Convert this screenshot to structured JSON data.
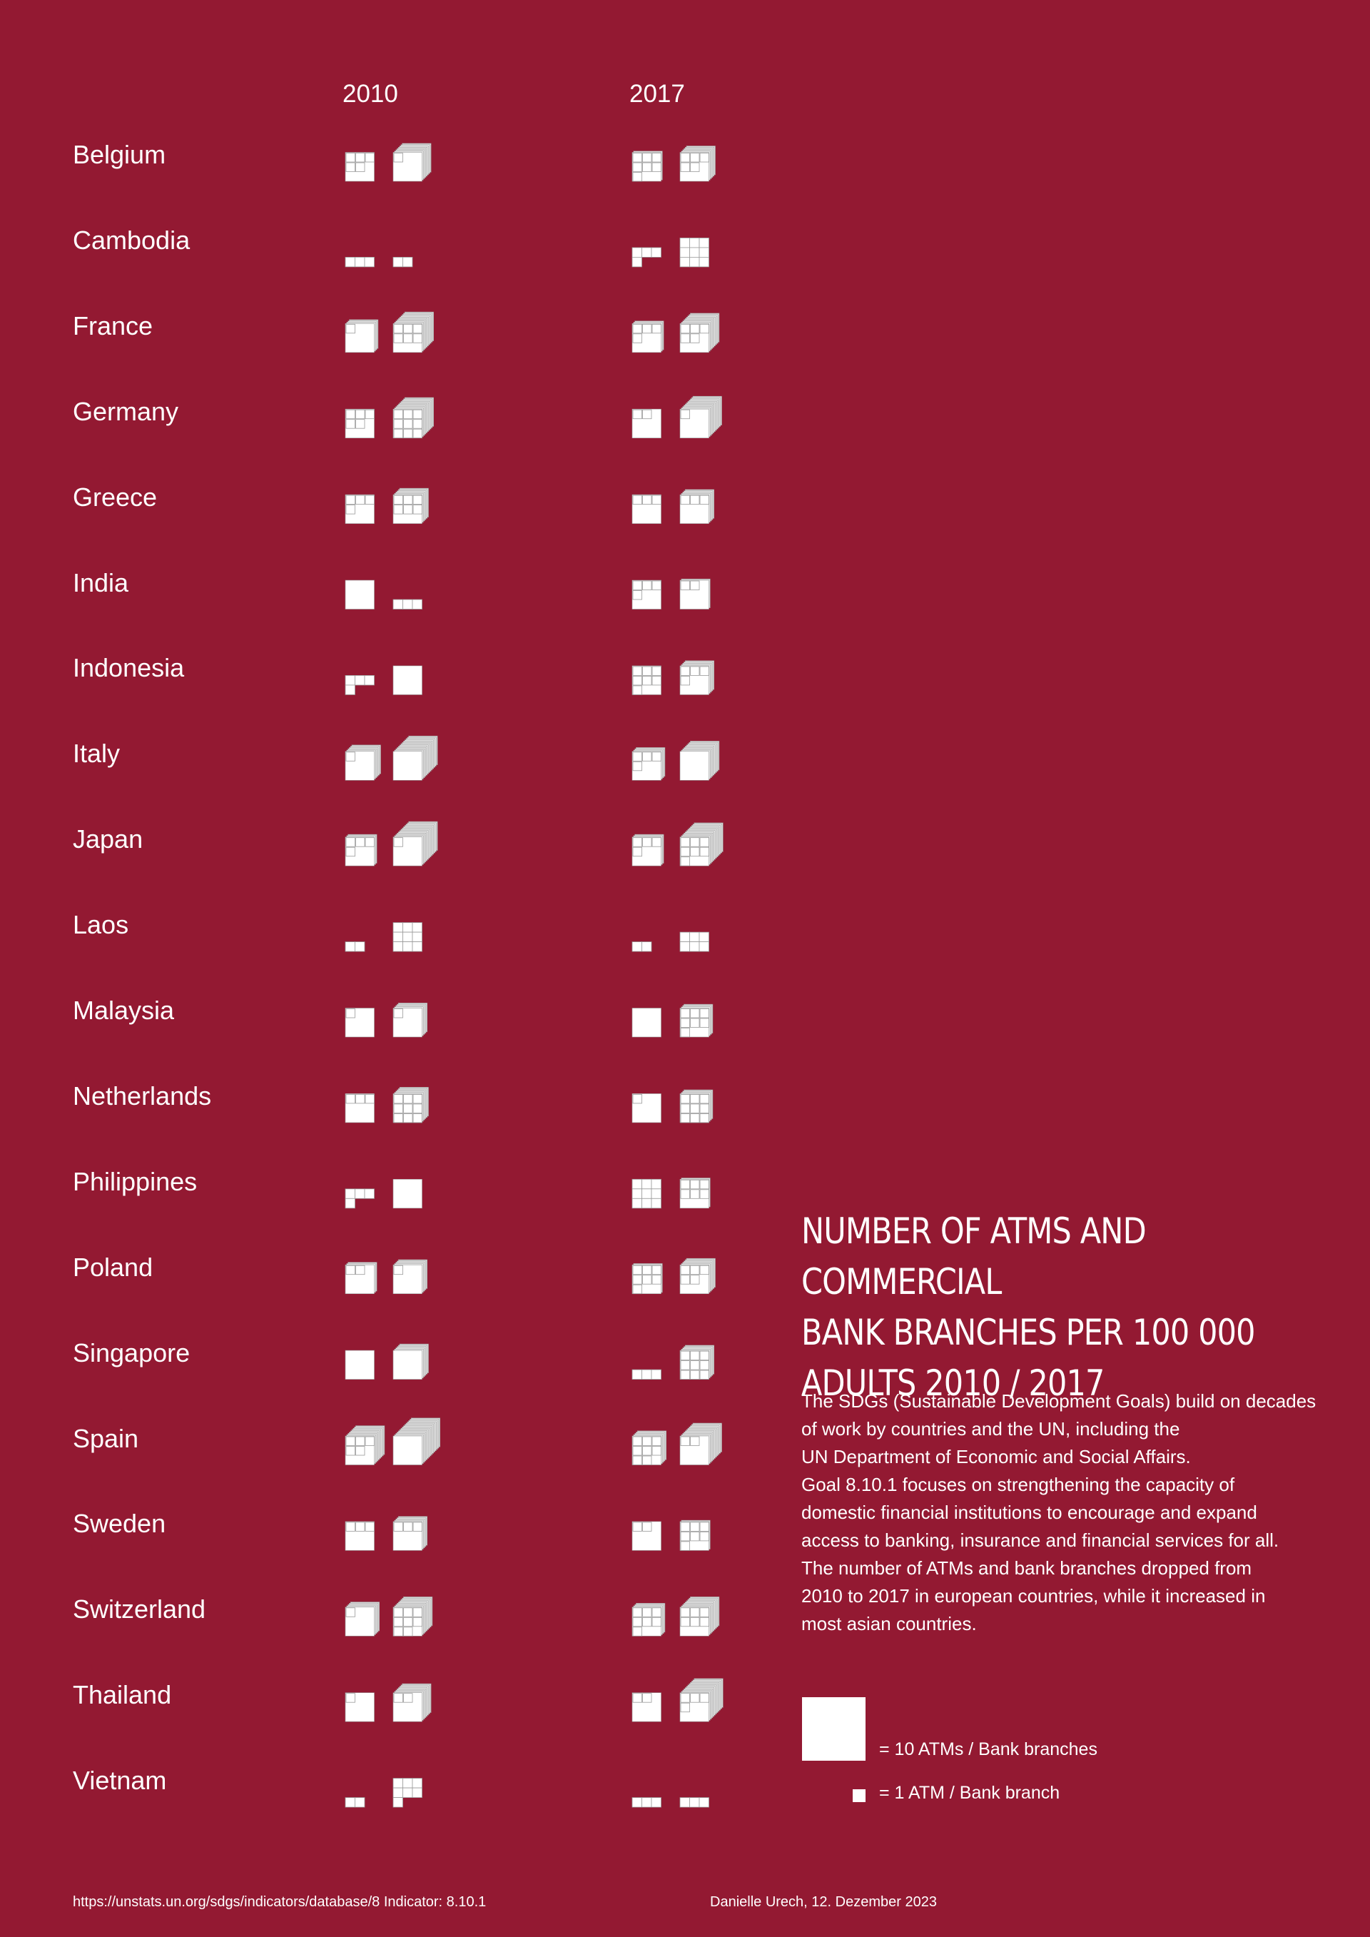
{
  "colors": {
    "background": "#931932",
    "glyph_fill": "#ffffff",
    "glyph_side": "#dcdcdc",
    "glyph_line": "#9a9a9a"
  },
  "years": [
    "2010",
    "2017"
  ],
  "title_lines": [
    "NUMBER OF ATMS AND COMMERCIAL",
    "BANK BRANCHES PER 100 000",
    "ADULTS 2010 / 2017"
  ],
  "description_lines": [
    "The SDGs (Sustainable Development Goals) build on decades",
    "of work by countries and the UN, including the",
    "UN Department of Economic and Social Affairs.",
    "Goal 8.10.1 focuses on strengthening the capacity of",
    "domestic financial institutions to encourage and expand",
    "access to banking, insurance and financial services for all.",
    "The number of ATMs and bank branches dropped from",
    "2010 to 2017 in european countries, while it increased in",
    "most asian countries."
  ],
  "legend": {
    "big_label": "= 10 ATMs / Bank branches",
    "small_label": "= 1 ATM /  Bank branch"
  },
  "footer": {
    "source": "https://unstats.un.org/sdgs/indicators/database/8 Indicator: 8.10.1",
    "credit": "Danielle Urech, 12. Dezember 2023"
  },
  "chart_data": {
    "type": "pictogram",
    "unit": "1 large square = 10, 1 small square = 1 (per 100 000 adults)",
    "series": [
      "Commercial bank branches",
      "ATMs"
    ],
    "categories": [
      "Belgium",
      "Cambodia",
      "France",
      "Germany",
      "Greece",
      "India",
      "Indonesia",
      "Italy",
      "Japan",
      "Laos",
      "Malaysia",
      "Netherlands",
      "Philippines",
      "Poland",
      "Singapore",
      "Spain",
      "Sweden",
      "Switzerland",
      "Thailand",
      "Vietnam"
    ],
    "values": {
      "2010": {
        "branches": [
          15,
          3,
          41,
          15,
          14,
          10,
          4,
          61,
          34,
          2,
          11,
          13,
          4,
          32,
          10,
          95,
          13,
          51,
          11,
          2
        ],
        "atms": [
          81,
          2,
          106,
          109,
          66,
          3,
          10,
          130,
          131,
          9,
          51,
          69,
          10,
          51,
          60,
          150,
          53,
          98,
          82,
          7
        ]
      },
      "2017": {
        "branches": [
          27,
          4,
          34,
          12,
          13,
          14,
          17,
          44,
          34,
          2,
          10,
          11,
          9,
          27,
          3,
          58,
          12,
          47,
          12,
          3
        ],
        "atms": [
          65,
          9,
          95,
          111,
          53,
          22,
          54,
          90,
          127,
          6,
          47,
          49,
          26,
          65,
          59,
          112,
          27,
          96,
          124,
          3
        ]
      }
    }
  }
}
